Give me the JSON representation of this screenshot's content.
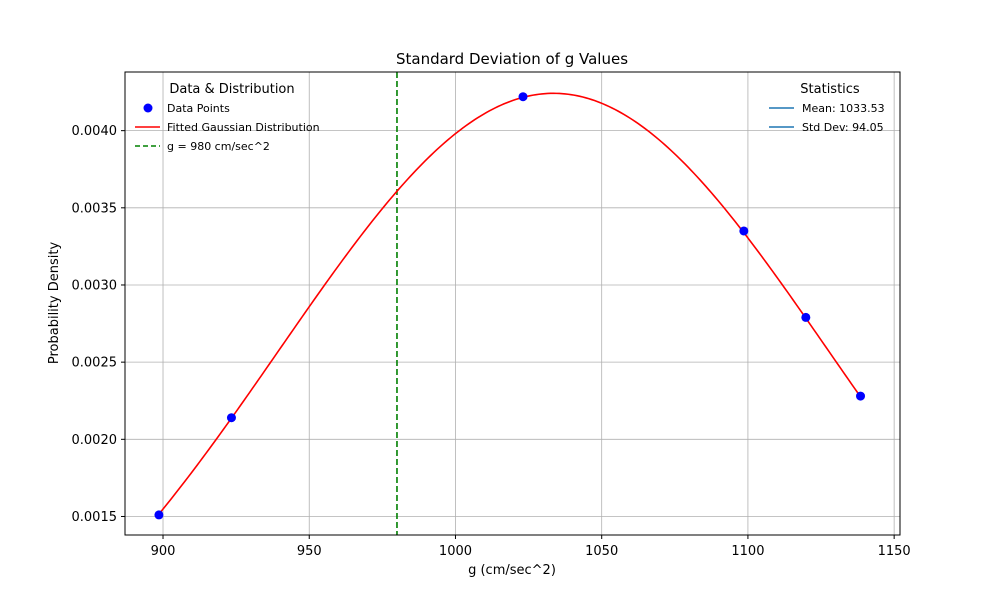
{
  "chart_data": {
    "type": "line",
    "title": "Standard Deviation of g Values",
    "xlabel": "g (cm/sec^2)",
    "ylabel": "Probability Density",
    "xlim": [
      887,
      1152
    ],
    "ylim": [
      0.00138,
      0.00438
    ],
    "x_ticks": [
      900,
      950,
      1000,
      1050,
      1100,
      1150
    ],
    "y_ticks": [
      0.0015,
      0.002,
      0.0025,
      0.003,
      0.0035,
      0.004
    ],
    "x_tick_labels": [
      "900",
      "950",
      "1000",
      "1050",
      "1100",
      "1150"
    ],
    "y_tick_labels": [
      "0.0015",
      "0.0020",
      "0.0025",
      "0.0030",
      "0.0035",
      "0.0040"
    ],
    "grid": true,
    "series": [
      {
        "name": "Data Points",
        "kind": "scatter",
        "color": "#0000ff",
        "x": [
          898.6,
          923.4,
          1023.1,
          1098.6,
          1119.8,
          1138.5
        ],
        "y": [
          0.00151,
          0.00214,
          0.00422,
          0.00335,
          0.00279,
          0.00228
        ]
      },
      {
        "name": "Fitted Gaussian Distribution",
        "kind": "gaussian",
        "color": "#ff0000",
        "mean": 1033.53,
        "std": 94.05,
        "x_range": [
          898.6,
          1138.5
        ]
      },
      {
        "name": "g = 980 cm/sec^2",
        "kind": "vline",
        "color": "#008000",
        "x": 980
      }
    ],
    "legend_data": {
      "title": "Data & Distribution",
      "placement": "top-left",
      "items": [
        "Data Points",
        "Fitted Gaussian Distribution",
        "g = 980 cm/sec^2"
      ]
    },
    "legend_stats": {
      "title": "Statistics",
      "placement": "top-right",
      "color": "#1f77b4",
      "items": [
        "Mean: 1033.53",
        "Std Dev: 94.05"
      ]
    }
  }
}
